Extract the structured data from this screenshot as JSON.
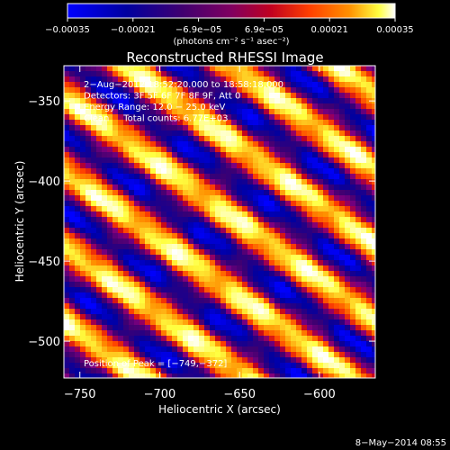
{
  "chart_data": {
    "type": "heatmap",
    "title": "Reconstructed RHESSI Image",
    "xlabel": "Heliocentric X (arcsec)",
    "ylabel": "Heliocentric Y (arcsec)",
    "xlim": [
      -760,
      -565
    ],
    "ylim": [
      -523,
      -328
    ],
    "xticks": [
      -750,
      -700,
      -650,
      -600
    ],
    "yticks": [
      -350,
      -400,
      -450,
      -500
    ],
    "xtick_labels": [
      "−750",
      "−700",
      "−650",
      "−600"
    ],
    "ytick_labels": [
      "−350",
      "−400",
      "−450",
      "−500"
    ],
    "colorbar": {
      "range": [
        -0.00035,
        0.00035
      ],
      "tick_labels": [
        "−0.00035",
        "−0.00021",
        "−6.9e−05",
        "6.9e−05",
        "0.00021",
        "0.00035"
      ],
      "unit": "(photons cm⁻² s⁻¹ asec⁻²)"
    },
    "annotations": [
      "2−Aug−2012 18:52:20.000 to 18:58:18.000",
      "Detectors: 3F 5F 6F 7F 8F 9F, Att 0",
      "Energy Range: 12.0 − 25.0 keV",
      "Clean     Total counts: 6.77E+03"
    ],
    "peak_label": "Position of Peak = [−749,−372]",
    "pattern": {
      "description_values": "diagonal fringe stripes, intensity in colorbar units",
      "min": -0.00035,
      "max": 0.00035,
      "stripe_period_arcsec": 38,
      "stripe_direction": [
        0.58,
        0.81
      ]
    },
    "colors": {
      "background": "#000000",
      "text": "#ffffff",
      "colormap": [
        "#0000ff",
        "#0000a0",
        "#400070",
        "#800080",
        "#c00020",
        "#ff4000",
        "#ff9000",
        "#ffff40",
        "#ffffff"
      ]
    }
  },
  "footer": {
    "timestamp": "8−May−2014 08:55"
  }
}
